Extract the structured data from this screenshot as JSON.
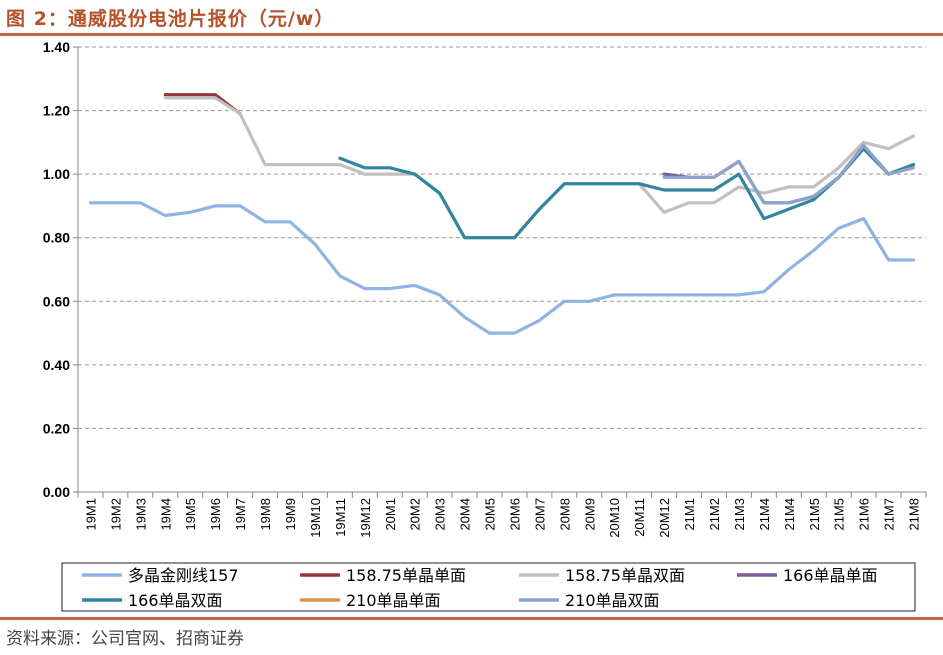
{
  "title": "图 2：通威股份电池片报价（元/w）",
  "source": "资料来源：公司官网、招商证券",
  "chart_data": {
    "type": "line",
    "ylim": [
      0,
      1.4
    ],
    "yticks": [
      "0.00",
      "0.20",
      "0.40",
      "0.60",
      "0.80",
      "1.00",
      "1.20",
      "1.40"
    ],
    "grid": true,
    "legend_position": "bottom",
    "categories": [
      "19M1",
      "19M2",
      "19M3",
      "19M4",
      "19M5",
      "19M6",
      "19M7",
      "19M8",
      "19M9",
      "19M10",
      "19M11",
      "19M12",
      "20M1",
      "20M2",
      "20M3",
      "20M4",
      "20M5",
      "20M6",
      "20M7",
      "20M8",
      "20M9",
      "20M10",
      "20M11",
      "20M12",
      "21M1",
      "21M2",
      "21M3",
      "21M4",
      "21M4",
      "21M5",
      "21M5",
      "21M6",
      "21M7",
      "21M8"
    ],
    "series": [
      {
        "name": "多晶金刚线157",
        "color": "#8fb4e3",
        "values": [
          0.91,
          0.91,
          0.91,
          0.87,
          0.88,
          0.9,
          0.9,
          0.85,
          0.85,
          0.78,
          0.68,
          0.64,
          0.64,
          0.65,
          0.62,
          0.55,
          0.5,
          0.5,
          0.54,
          0.6,
          0.6,
          0.62,
          0.62,
          0.62,
          0.62,
          0.62,
          0.62,
          0.63,
          0.7,
          0.76,
          0.83,
          0.86,
          0.73,
          0.73
        ]
      },
      {
        "name": "158.75单晶单面",
        "color": "#943634",
        "values": [
          null,
          null,
          null,
          1.25,
          1.25,
          1.25,
          1.19,
          null,
          null,
          null,
          null,
          null,
          null,
          null,
          null,
          null,
          null,
          null,
          null,
          null,
          null,
          null,
          null,
          null,
          null,
          null,
          null,
          null,
          null,
          null,
          null,
          null,
          null,
          null
        ]
      },
      {
        "name": "158.75单晶双面",
        "color": "#c0c0c0",
        "values": [
          null,
          null,
          null,
          1.24,
          1.24,
          1.24,
          1.19,
          1.03,
          1.03,
          1.03,
          1.03,
          1.0,
          1.0,
          1.0,
          0.94,
          0.8,
          0.8,
          0.8,
          0.89,
          0.97,
          0.97,
          0.97,
          0.97,
          0.88,
          0.91,
          0.91,
          0.96,
          0.94,
          0.96,
          0.96,
          1.02,
          1.1,
          1.08,
          1.12
        ]
      },
      {
        "name": "166单晶单面",
        "color": "#7a5c99",
        "values": [
          null,
          null,
          null,
          null,
          null,
          null,
          null,
          null,
          null,
          null,
          null,
          null,
          null,
          null,
          null,
          null,
          null,
          null,
          null,
          null,
          null,
          null,
          null,
          1.0,
          0.99,
          0.99,
          1.04,
          0.91,
          0.91,
          0.93,
          0.99,
          1.09,
          1.0,
          1.03
        ]
      },
      {
        "name": "166单晶双面",
        "color": "#31859c",
        "values": [
          null,
          null,
          null,
          null,
          null,
          null,
          null,
          null,
          null,
          null,
          1.05,
          1.02,
          1.02,
          1.0,
          0.94,
          0.8,
          0.8,
          0.8,
          0.89,
          0.97,
          0.97,
          0.97,
          0.97,
          0.95,
          0.95,
          0.95,
          1.0,
          0.86,
          0.89,
          0.92,
          0.99,
          1.08,
          1.0,
          1.03
        ]
      },
      {
        "name": "210单晶单面",
        "color": "#e0924a",
        "values": [
          null,
          null,
          null,
          null,
          null,
          null,
          null,
          null,
          null,
          null,
          null,
          null,
          null,
          null,
          null,
          null,
          null,
          null,
          null,
          null,
          null,
          null,
          null,
          null,
          null,
          null,
          null,
          null,
          null,
          null,
          null,
          null,
          null,
          null
        ]
      },
      {
        "name": "210单晶双面",
        "color": "#8ea3cc",
        "values": [
          null,
          null,
          null,
          null,
          null,
          null,
          null,
          null,
          null,
          null,
          null,
          null,
          null,
          null,
          null,
          null,
          null,
          null,
          null,
          null,
          null,
          null,
          null,
          0.99,
          0.99,
          0.99,
          1.04,
          0.91,
          0.91,
          0.93,
          0.99,
          1.09,
          1.0,
          1.02
        ]
      }
    ]
  }
}
